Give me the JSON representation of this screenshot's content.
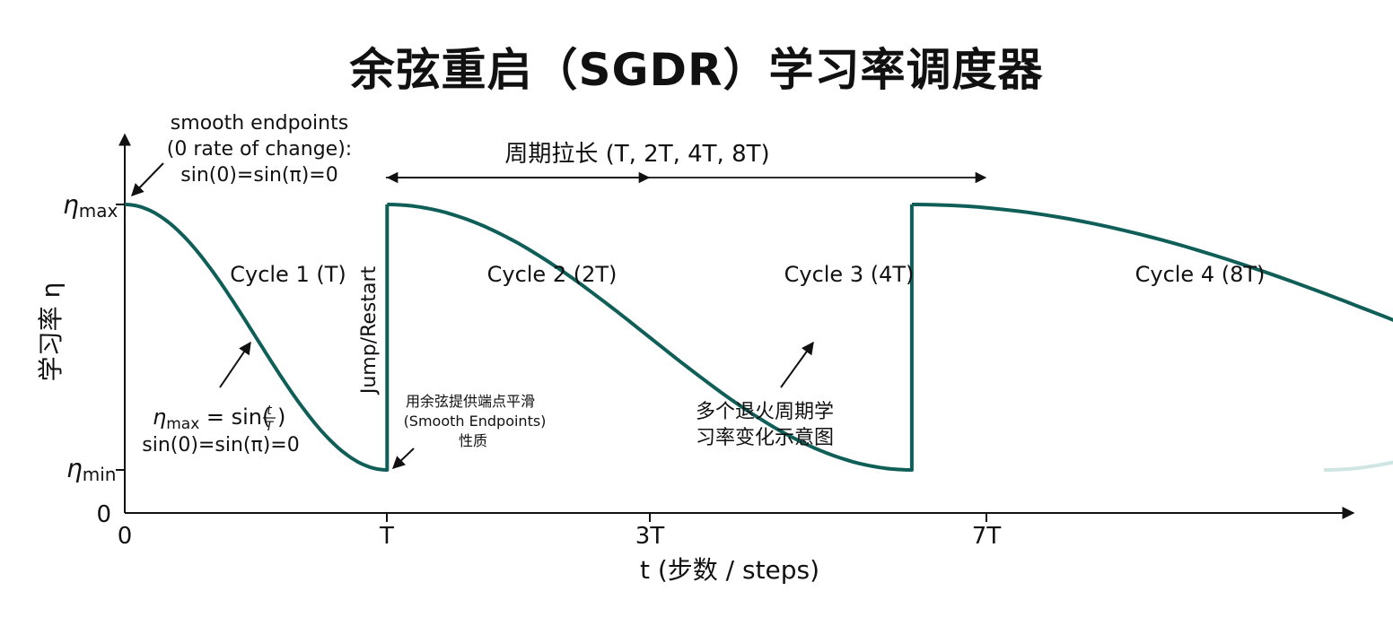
{
  "title": "余弦重启（SGDR）学习率调度器",
  "axes": {
    "y_label": "学习率 η",
    "eta_max_label": "η",
    "eta_max_sub": "max",
    "eta_min_label": "η",
    "eta_min_sub": "min",
    "y_zero": "0",
    "x_label": "t (步数 / steps)",
    "x_ticks": [
      "0",
      "T",
      "3T",
      "7T"
    ]
  },
  "colors": {
    "curve": "#0f5f58",
    "fade": "#cfe5e2",
    "axis": "#111111"
  },
  "annotations": {
    "smooth_endpoints": [
      "smooth endpoints",
      "(0 rate of change):",
      "sin(0)=sin(π)=0"
    ],
    "period_stretch": "周期拉长 (T, 2T, 4T, 8T)",
    "jump_restart": "Jump/Restart",
    "formula_eta": "η",
    "formula_sub": "max",
    "formula_rest": " = sin(",
    "formula_num": "t",
    "formula_den": "T",
    "formula_close": ")",
    "formula_line2": "sin(0)=sin(π)=0",
    "cosine_endpoints": [
      "用余弦提供端点平滑",
      "(Smooth Endpoints)",
      "性质"
    ],
    "multi_cycle": [
      "多个退火周期学",
      "习率变化示意图"
    ]
  },
  "chart_data": {
    "type": "line",
    "series": [
      {
        "cycle_lengths_T": [
          1,
          2,
          4,
          8
        ],
        "restart_points": [
          "T",
          "3T",
          "7T"
        ]
      }
    ],
    "cycle_labels": [
      "Cycle 1 (T)",
      "Cycle 2 (2T)",
      "Cycle 3 (4T)",
      "Cycle 4 (8T)"
    ],
    "y_levels": [
      "ηmax",
      "ηmin",
      "0"
    ]
  }
}
